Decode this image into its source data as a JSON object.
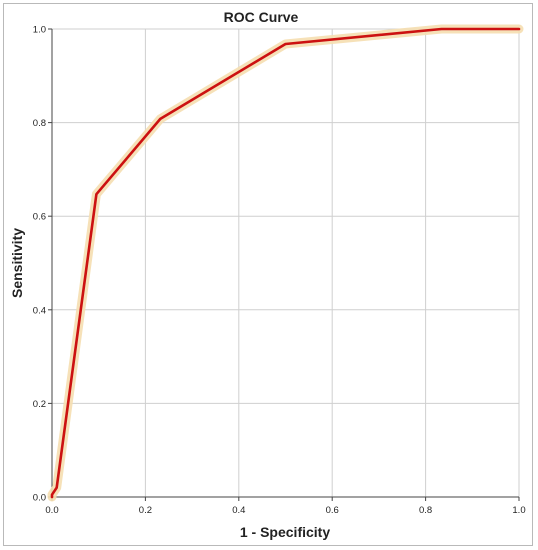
{
  "chart_data": {
    "type": "line",
    "title": "ROC Curve",
    "xlabel": "1 - Specificity",
    "ylabel": "Sensitivity",
    "xlim": [
      0,
      1
    ],
    "ylim": [
      0,
      1
    ],
    "xticks": [
      "0.0",
      "0.2",
      "0.4",
      "0.6",
      "0.8",
      "1.0"
    ],
    "yticks": [
      "0.0",
      "0.2",
      "0.4",
      "0.6",
      "0.8",
      "1.0"
    ],
    "grid": true,
    "colors": {
      "line": "#cc1111",
      "confidence_band": "#f5deb0",
      "grid": "#cfcfcf",
      "axis": "#444444"
    },
    "series": [
      {
        "x": [
          0.0,
          0.0,
          0.01,
          0.095,
          0.232,
          0.5,
          0.834,
          1.0
        ],
        "y": [
          0.0,
          0.005,
          0.02,
          0.647,
          0.808,
          0.968,
          1.0,
          1.0
        ]
      }
    ]
  }
}
